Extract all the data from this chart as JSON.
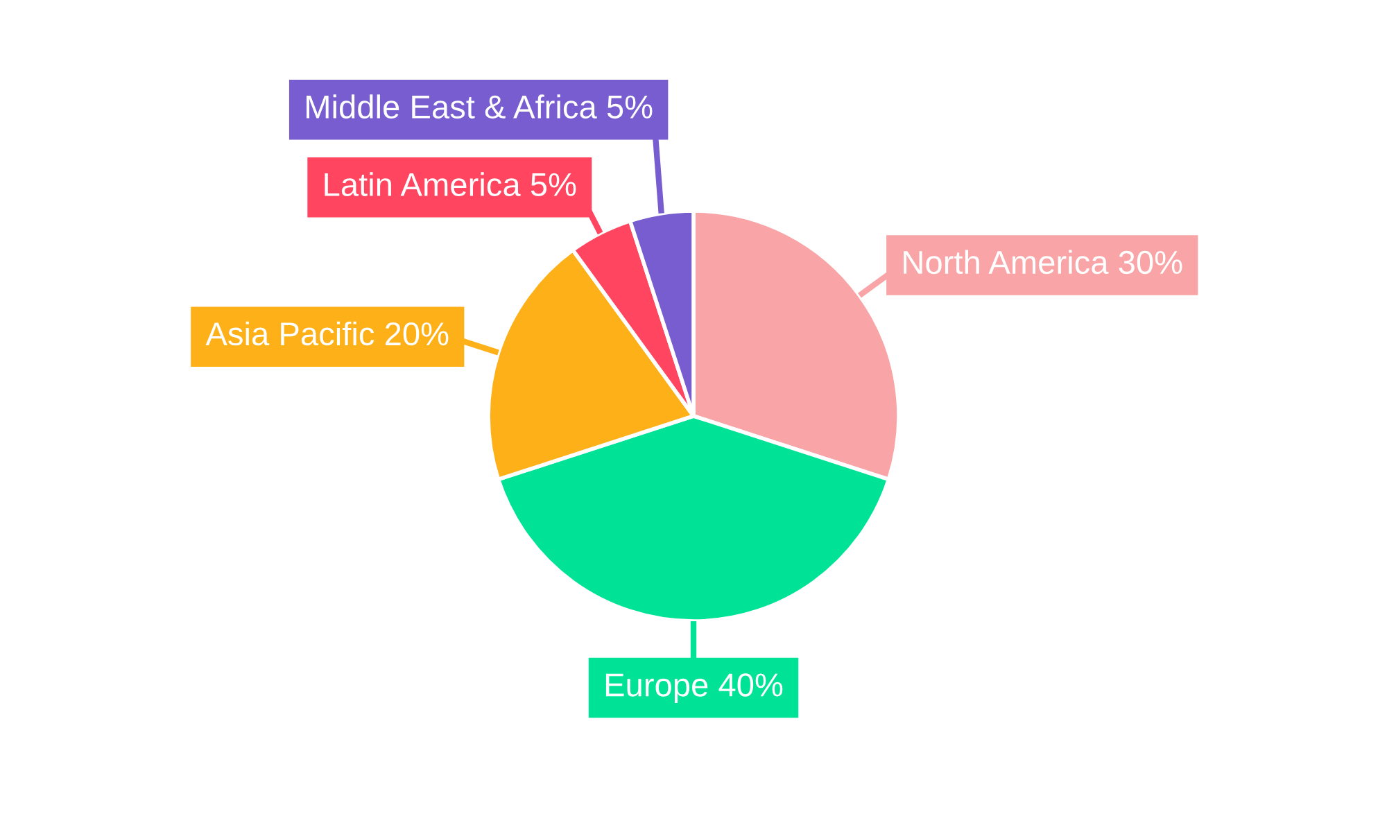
{
  "chart_data": {
    "type": "pie",
    "categories": [
      "North America",
      "Europe",
      "Asia Pacific",
      "Latin America",
      "Middle East & Africa"
    ],
    "values": [
      30,
      40,
      20,
      5,
      5
    ],
    "colors": [
      "#f9a5a7",
      "#00e396",
      "#feb019",
      "#ff4560",
      "#775dd0"
    ],
    "value_labels": [
      "30%",
      "40%",
      "20%",
      "5%",
      "5%"
    ],
    "legend": false
  }
}
